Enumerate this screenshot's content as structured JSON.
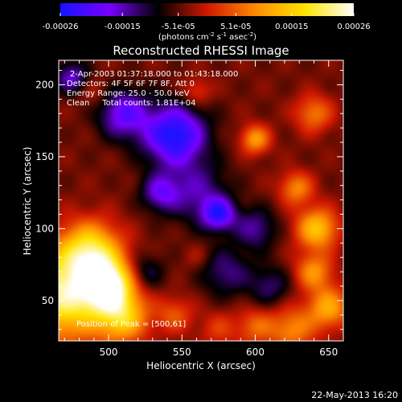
{
  "chart_data": {
    "type": "heatmap",
    "title": "Reconstructed RHESSI Image",
    "colorbar": {
      "ticks": [
        "-0.00026",
        "-0.00015",
        "-5.1e-05",
        "5.1e-05",
        "0.00015",
        "0.00026"
      ],
      "unit_label": "(photons cm-2 s-1 asec-2)",
      "range": [
        -0.00026,
        0.00026
      ],
      "colors": [
        "#1414ff",
        "#7a00ff",
        "#000000",
        "#d01800",
        "#ff8c00",
        "#ffe400",
        "#ffffff"
      ]
    },
    "annotations": [
      "2-Apr-2003 01:37:18.000 to 01:43:18.000",
      "Detectors: 4F 5F 6F 7F 8F, Att 0",
      "Energy Range: 25.0 - 50.0 keV",
      "Clean     Total counts: 1.81E+04"
    ],
    "peak_label": "Position of Peak = [500,61]",
    "xlabel": "Heliocentric X (arcsec)",
    "ylabel": "Heliocentric Y (arcsec)",
    "xlim": [
      466,
      660
    ],
    "ylim": [
      22,
      217
    ],
    "xticks": [
      500,
      550,
      600,
      650
    ],
    "yticks": [
      50,
      100,
      150,
      200
    ],
    "footer_date": "22-May-2013 16:20",
    "sources": [
      {
        "x": 470,
        "y": 55,
        "value": 0.00026,
        "sigma": 22
      },
      {
        "x": 500,
        "y": 61,
        "value": 0.00026,
        "sigma": 12
      },
      {
        "x": 488,
        "y": 85,
        "value": 0.00019,
        "sigma": 14
      },
      {
        "x": 510,
        "y": 38,
        "value": 0.00017,
        "sigma": 12
      },
      {
        "x": 545,
        "y": 40,
        "value": 8e-05,
        "sigma": 9
      },
      {
        "x": 575,
        "y": 30,
        "value": 6e-05,
        "sigma": 9
      },
      {
        "x": 600,
        "y": 32,
        "value": 9e-05,
        "sigma": 9
      },
      {
        "x": 625,
        "y": 30,
        "value": 0.00012,
        "sigma": 11
      },
      {
        "x": 650,
        "y": 45,
        "value": 0.00015,
        "sigma": 10
      },
      {
        "x": 640,
        "y": 70,
        "value": 0.00013,
        "sigma": 9
      },
      {
        "x": 642,
        "y": 100,
        "value": 0.00018,
        "sigma": 10
      },
      {
        "x": 628,
        "y": 128,
        "value": 0.00012,
        "sigma": 8
      },
      {
        "x": 600,
        "y": 162,
        "value": 0.00014,
        "sigma": 7
      },
      {
        "x": 640,
        "y": 180,
        "value": 0.00011,
        "sigma": 9
      },
      {
        "x": 560,
        "y": 195,
        "value": 7e-05,
        "sigma": 7
      },
      {
        "x": 490,
        "y": 195,
        "value": 4e-05,
        "sigma": 8
      },
      {
        "x": 545,
        "y": 165,
        "value": -0.00022,
        "sigma": 15
      },
      {
        "x": 510,
        "y": 180,
        "value": -0.00015,
        "sigma": 12
      },
      {
        "x": 575,
        "y": 110,
        "value": -0.00017,
        "sigma": 8
      },
      {
        "x": 535,
        "y": 125,
        "value": -0.00012,
        "sigma": 9
      },
      {
        "x": 560,
        "y": 125,
        "value": -0.0001,
        "sigma": 15
      },
      {
        "x": 580,
        "y": 70,
        "value": -9e-05,
        "sigma": 12
      },
      {
        "x": 610,
        "y": 60,
        "value": -8e-05,
        "sigma": 10
      },
      {
        "x": 525,
        "y": 70,
        "value": -8e-05,
        "sigma": 9
      },
      {
        "x": 600,
        "y": 100,
        "value": -0.0001,
        "sigma": 10
      },
      {
        "x": 475,
        "y": 205,
        "value": -0.00012,
        "sigma": 8
      },
      {
        "x": 560,
        "y": 80,
        "value": 3e-05,
        "sigma": 6
      }
    ]
  }
}
